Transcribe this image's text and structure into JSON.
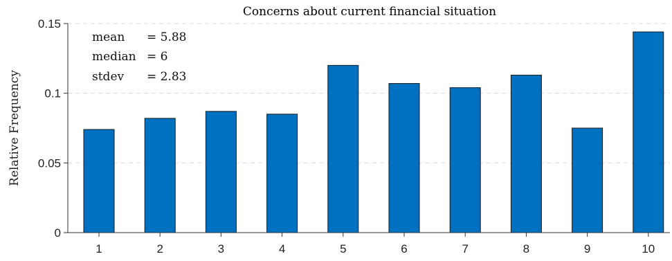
{
  "chart_data": {
    "type": "bar",
    "title": "Concerns about current financial situation",
    "xlabel": "",
    "ylabel": "Relative Frequency",
    "categories": [
      "1",
      "2",
      "3",
      "4",
      "5",
      "6",
      "7",
      "8",
      "9",
      "10"
    ],
    "values": [
      0.074,
      0.082,
      0.087,
      0.085,
      0.12,
      0.107,
      0.104,
      0.113,
      0.075,
      0.144
    ],
    "ylim": [
      0,
      0.15
    ],
    "yticks": [
      0,
      0.05,
      0.1,
      0.15
    ],
    "ytick_labels": [
      "0",
      "0.05",
      "0.1",
      "0.15"
    ],
    "grid": "horizontal dashed",
    "bar_color": "#0070C0",
    "annotations": [
      {
        "label": "mean",
        "value": "= 5.88"
      },
      {
        "label": "median",
        "value": "= 6"
      },
      {
        "label": "stdev",
        "value": "= 2.83"
      }
    ]
  }
}
